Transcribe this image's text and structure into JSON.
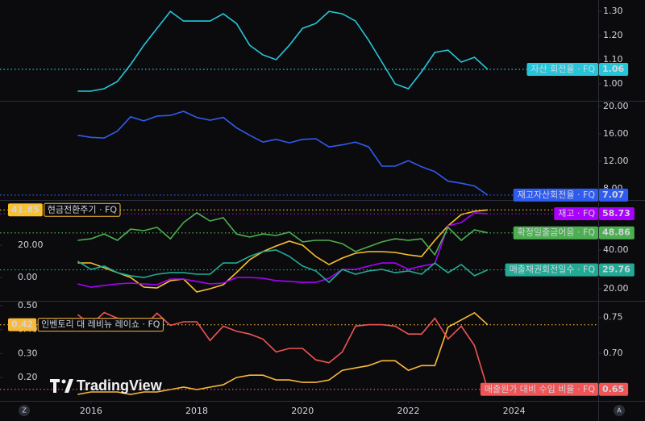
{
  "chart_data": [
    {
      "type": "line",
      "x": [
        2015.75,
        2016,
        2016.25,
        2016.5,
        2016.75,
        2017,
        2017.25,
        2017.5,
        2017.75,
        2018,
        2018.25,
        2018.5,
        2018.75,
        2019,
        2019.25,
        2019.5,
        2019.75,
        2020,
        2020.25,
        2020.5,
        2020.75,
        2021,
        2021.25,
        2021.5,
        2021.75,
        2022,
        2022.25,
        2022.5,
        2022.75,
        2023,
        2023.25,
        2023.5
      ],
      "xlim": [
        2014.28,
        2025.59
      ],
      "y2lim": [
        0.93,
        1.347
      ],
      "y2ticks": [
        {
          "value": 1.0,
          "label": "1.00"
        },
        {
          "value": 1.1,
          "label": "1.10"
        },
        {
          "value": 1.2,
          "label": "1.20"
        },
        {
          "value": 1.3,
          "label": "1.30"
        }
      ],
      "series": [
        {
          "name": "자산 회전율 · FQ",
          "color": "#26c6da",
          "axis": "y2",
          "values": [
            0.97,
            0.97,
            0.98,
            1.01,
            1.08,
            1.16,
            1.23,
            1.3,
            1.26,
            1.26,
            1.26,
            1.29,
            1.25,
            1.16,
            1.12,
            1.1,
            1.16,
            1.23,
            1.25,
            1.3,
            1.29,
            1.26,
            1.18,
            1.09,
            1.0,
            0.98,
            1.05,
            1.13,
            1.14,
            1.09,
            1.11,
            1.06
          ]
        }
      ]
    },
    {
      "type": "line",
      "x": [
        2015.75,
        2016,
        2016.25,
        2016.5,
        2016.75,
        2017,
        2017.25,
        2017.5,
        2017.75,
        2018,
        2018.25,
        2018.5,
        2018.75,
        2019,
        2019.25,
        2019.5,
        2019.75,
        2020,
        2020.25,
        2020.5,
        2020.75,
        2021,
        2021.25,
        2021.5,
        2021.75,
        2022,
        2022.25,
        2022.5,
        2022.75,
        2023,
        2023.25,
        2023.5
      ],
      "xlim": [
        2014.28,
        2025.59
      ],
      "y2lim": [
        6.47,
        20.59
      ],
      "y2ticks": [
        {
          "value": 8,
          "label": "8.00"
        },
        {
          "value": 12,
          "label": "12.00"
        },
        {
          "value": 16,
          "label": "16.00"
        },
        {
          "value": 20,
          "label": "20.00"
        }
      ],
      "series": [
        {
          "name": "재고자산회전율 · FQ",
          "color": "#2f5cf0",
          "axis": "y2",
          "values": [
            15.8,
            15.5,
            15.4,
            16.4,
            18.5,
            17.9,
            18.6,
            18.7,
            19.3,
            18.4,
            18.0,
            18.4,
            16.9,
            15.8,
            14.8,
            15.2,
            14.7,
            15.2,
            15.3,
            14.1,
            14.4,
            14.8,
            14.1,
            11.3,
            11.3,
            12.1,
            11.2,
            10.5,
            9.1,
            8.8,
            8.4,
            7.07
          ]
        }
      ]
    },
    {
      "type": "line",
      "x": [
        2015.75,
        2016,
        2016.25,
        2016.5,
        2016.75,
        2017,
        2017.25,
        2017.5,
        2017.75,
        2018,
        2018.25,
        2018.5,
        2018.75,
        2019,
        2019.25,
        2019.5,
        2019.75,
        2020,
        2020.25,
        2020.5,
        2020.75,
        2021,
        2021.25,
        2021.5,
        2021.75,
        2022,
        2022.25,
        2022.5,
        2022.75,
        2023,
        2023.25,
        2023.5
      ],
      "xlim": [
        2014.28,
        2025.59
      ],
      "ylim": [
        -14,
        47
      ],
      "yticks": [
        {
          "value": 0,
          "label": "0.00"
        },
        {
          "value": 20,
          "label": "20.00"
        }
      ],
      "y2lim": [
        14.17,
        65
      ],
      "y2ticks": [
        {
          "value": 20,
          "label": "20.00"
        },
        {
          "value": 40,
          "label": "40.00"
        }
      ],
      "series": [
        {
          "name": "현금전환주기 · FQ",
          "color": "#fbc02d",
          "axis": "y",
          "values": [
            9,
            9,
            6,
            3,
            0,
            -6,
            -6.5,
            -2,
            -1,
            -9,
            -7,
            -4.5,
            3,
            11,
            16,
            19.5,
            22.5,
            20,
            13,
            8,
            12,
            15,
            16,
            16,
            15.5,
            14,
            13,
            23,
            32,
            39,
            41,
            41.85
          ]
        },
        {
          "name": "재고 · FQ",
          "color": "#aa00ff",
          "axis": "y2",
          "values": [
            22.5,
            20.8,
            21.7,
            22.5,
            22.9,
            22.5,
            22.1,
            25,
            25,
            23.8,
            22.5,
            22.9,
            25.8,
            25.8,
            25.4,
            24.2,
            23.8,
            23.3,
            23.3,
            25.4,
            30,
            30,
            31.7,
            33.3,
            33.3,
            30,
            31.7,
            32.9,
            52.5,
            54.2,
            59.2,
            58.73
          ]
        },
        {
          "name": "확정일출금어음 · FQ",
          "color": "#4caf50",
          "axis": "y2",
          "values": [
            45,
            45.8,
            48.3,
            45,
            50.8,
            50,
            51.7,
            45.8,
            54.2,
            59.2,
            55,
            56.7,
            48.3,
            46.7,
            48.3,
            47.5,
            49.2,
            44.2,
            45,
            45,
            43.3,
            39.2,
            41.7,
            44.2,
            45.8,
            45,
            45.8,
            37.5,
            51.7,
            45,
            50.4,
            48.86
          ]
        },
        {
          "name": "매출채권회전일수 · FQ",
          "color": "#22ab94",
          "axis": "y2",
          "values": [
            34.2,
            30,
            31.7,
            28.3,
            26.7,
            25.8,
            27.5,
            28.3,
            28.3,
            27.5,
            27.5,
            33.3,
            33.3,
            36.7,
            39.2,
            40,
            36.7,
            31.7,
            29.2,
            23.3,
            30,
            27.5,
            29.2,
            30,
            28.3,
            29.2,
            27.5,
            33.3,
            28.3,
            32.5,
            26.7,
            29.76
          ]
        }
      ]
    },
    {
      "type": "line",
      "x": [
        2015.75,
        2016,
        2016.25,
        2016.5,
        2016.75,
        2017,
        2017.25,
        2017.5,
        2017.75,
        2018,
        2018.25,
        2018.5,
        2018.75,
        2019,
        2019.25,
        2019.5,
        2019.75,
        2020,
        2020.25,
        2020.5,
        2020.75,
        2021,
        2021.25,
        2021.5,
        2021.75,
        2022,
        2022.25,
        2022.5,
        2022.75,
        2023,
        2023.25,
        2023.5
      ],
      "xlim": [
        2014.28,
        2025.59
      ],
      "xticks": [
        2016,
        2018,
        2020,
        2022,
        2024
      ],
      "ylim": [
        0.103,
        0.513
      ],
      "yticks": [
        {
          "value": 0.2,
          "label": "0.20"
        },
        {
          "value": 0.3,
          "label": "0.30"
        },
        {
          "value": 0.4,
          "label": "0.40"
        },
        {
          "value": 0.5,
          "label": "0.50"
        }
      ],
      "y2lim": [
        0.634,
        0.771
      ],
      "y2ticks": [
        {
          "value": 0.7,
          "label": "0.70"
        },
        {
          "value": 0.75,
          "label": "0.75"
        }
      ],
      "series": [
        {
          "name": "인벤토리 대 레비뉴 레이쇼 · FQ",
          "color": "#f9b93a",
          "axis": "y",
          "values": [
            0.13,
            0.14,
            0.14,
            0.14,
            0.13,
            0.14,
            0.14,
            0.15,
            0.16,
            0.15,
            0.16,
            0.17,
            0.2,
            0.21,
            0.21,
            0.19,
            0.19,
            0.18,
            0.18,
            0.19,
            0.23,
            0.24,
            0.25,
            0.27,
            0.27,
            0.23,
            0.25,
            0.25,
            0.41,
            0.44,
            0.47,
            0.42
          ]
        },
        {
          "name": "매출원가 대비 수입 비율 · FQ",
          "color": "#f05454",
          "axis": "y2",
          "values": [
            0.754,
            0.74,
            0.757,
            0.749,
            0.747,
            0.738,
            0.756,
            0.739,
            0.744,
            0.744,
            0.718,
            0.738,
            0.731,
            0.727,
            0.72,
            0.702,
            0.707,
            0.707,
            0.691,
            0.687,
            0.702,
            0.738,
            0.74,
            0.74,
            0.738,
            0.727,
            0.727,
            0.749,
            0.72,
            0.738,
            0.711,
            0.65
          ]
        }
      ]
    }
  ],
  "watermark": "TradingView",
  "controls": [
    "Z",
    "A"
  ]
}
